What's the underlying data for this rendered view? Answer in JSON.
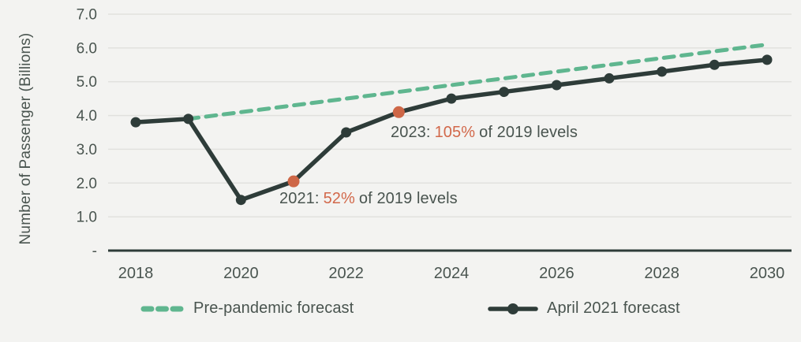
{
  "colors": {
    "background": "#F3F3F1",
    "gridline": "#E1E1DE",
    "axis_line": "#2E3C39",
    "text": "#49544F",
    "dark_series": "#2E3C39",
    "green_series": "#5FB68F",
    "highlight_orange": "#CE6747",
    "annotation_orange": "#D2684A"
  },
  "chart_data": {
    "type": "line",
    "title": "",
    "xlabel": "",
    "ylabel": "Number of Passenger (Billions)",
    "ylim": [
      0,
      7
    ],
    "grid": true,
    "legend_position": "bottom",
    "x": [
      2018,
      2019,
      2020,
      2021,
      2022,
      2023,
      2024,
      2025,
      2026,
      2027,
      2028,
      2029,
      2030
    ],
    "x_tick_values": [
      2018,
      2020,
      2022,
      2024,
      2026,
      2028,
      2030
    ],
    "x_tick_labels": [
      "2018",
      "2020",
      "2022",
      "2024",
      "2026",
      "2028",
      "2030"
    ],
    "y_tick_values": [
      7,
      6,
      5,
      4,
      3,
      2,
      1,
      0
    ],
    "y_tick_labels": [
      "7.0",
      "6.0",
      "5.0",
      "4.0",
      "3.0",
      "2.0",
      "1.0",
      "-"
    ],
    "series": [
      {
        "name": "Pre-pandemic forecast",
        "color": "#5FB68F",
        "line_style": "dashed",
        "markers": false,
        "values": [
          null,
          3.9,
          4.1,
          4.3,
          4.5,
          4.7,
          4.9,
          5.1,
          5.3,
          5.5,
          5.7,
          5.9,
          6.1
        ]
      },
      {
        "name": "April 2021 forecast",
        "color": "#2E3C39",
        "line_style": "solid",
        "markers": true,
        "highlight_x": [
          2021,
          2023
        ],
        "highlight_color": "#CE6747",
        "values": [
          3.8,
          3.9,
          1.5,
          2.05,
          3.5,
          4.1,
          4.5,
          4.7,
          4.9,
          5.1,
          5.3,
          5.5,
          5.65
        ]
      }
    ],
    "annotations": [
      {
        "x": 2021,
        "prefix": "2021:",
        "highlight": "52%",
        "suffix": "of 2019 levels"
      },
      {
        "x": 2023,
        "prefix": "2023:",
        "highlight": "105%",
        "suffix": "of 2019 levels"
      }
    ]
  },
  "legend": [
    {
      "label": "Pre-pandemic forecast",
      "style": "dashed-green"
    },
    {
      "label": "April 2021 forecast",
      "style": "solid-dark-dot"
    }
  ]
}
